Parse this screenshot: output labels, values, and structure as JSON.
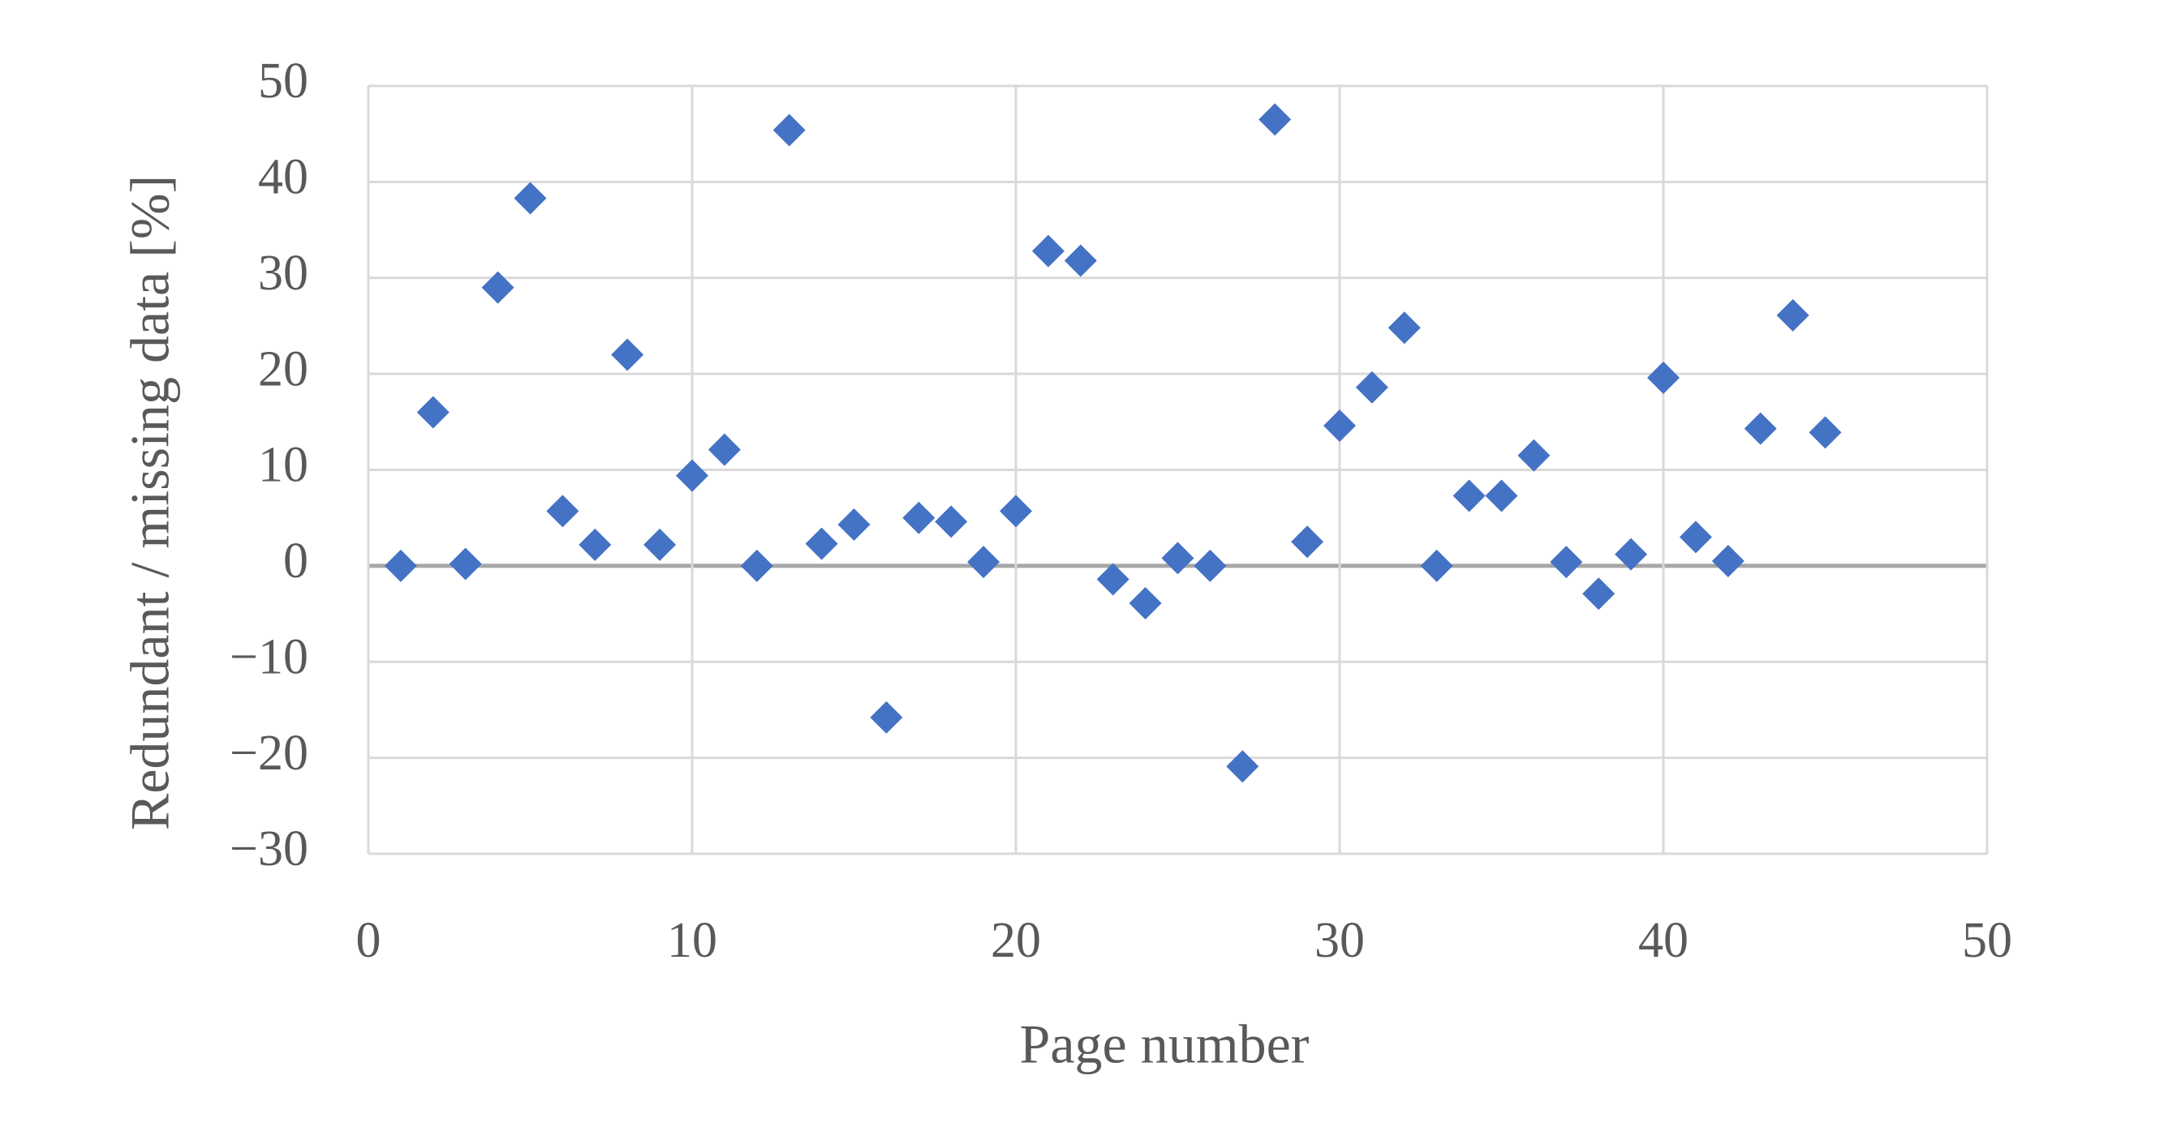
{
  "chart_data": {
    "type": "scatter",
    "x_label": "Page number",
    "y_label": "Redundant / missing data [%]",
    "x": [
      1,
      2,
      3,
      4,
      5,
      6,
      7,
      8,
      9,
      10,
      11,
      12,
      13,
      14,
      15,
      16,
      17,
      18,
      19,
      20,
      21,
      22,
      23,
      24,
      25,
      26,
      27,
      28,
      29,
      30,
      31,
      32,
      33,
      34,
      35,
      36,
      37,
      38,
      39,
      40,
      41,
      42,
      43,
      44,
      45
    ],
    "series": [
      {
        "color": "#4472c4",
        "values": [
          0,
          16,
          0.2,
          29,
          38.3,
          5.7,
          2.2,
          22,
          2.2,
          9.4,
          12.1,
          0,
          45.4,
          2.3,
          4.3,
          -15.8,
          5,
          4.6,
          0.4,
          5.7,
          32.8,
          31.8,
          -1.4,
          -3.9,
          0.8,
          0,
          -20.9,
          46.5,
          2.5,
          14.6,
          18.6,
          24.8,
          0,
          7.3,
          7.3,
          11.5,
          0.4,
          -2.9,
          1.2,
          19.6,
          3,
          0.5,
          14.3,
          26.1,
          13.9
        ]
      }
    ],
    "xlim": [
      0,
      50
    ],
    "xticks": [
      0,
      10,
      20,
      30,
      40,
      50
    ],
    "ylim": [
      -30,
      50
    ],
    "yticks": [
      {
        "value": -30,
        "label": "−30"
      },
      {
        "value": -20,
        "label": "−20"
      },
      {
        "value": -10,
        "label": "−10"
      },
      0,
      10,
      20,
      30,
      40,
      50
    ],
    "grid": true
  }
}
